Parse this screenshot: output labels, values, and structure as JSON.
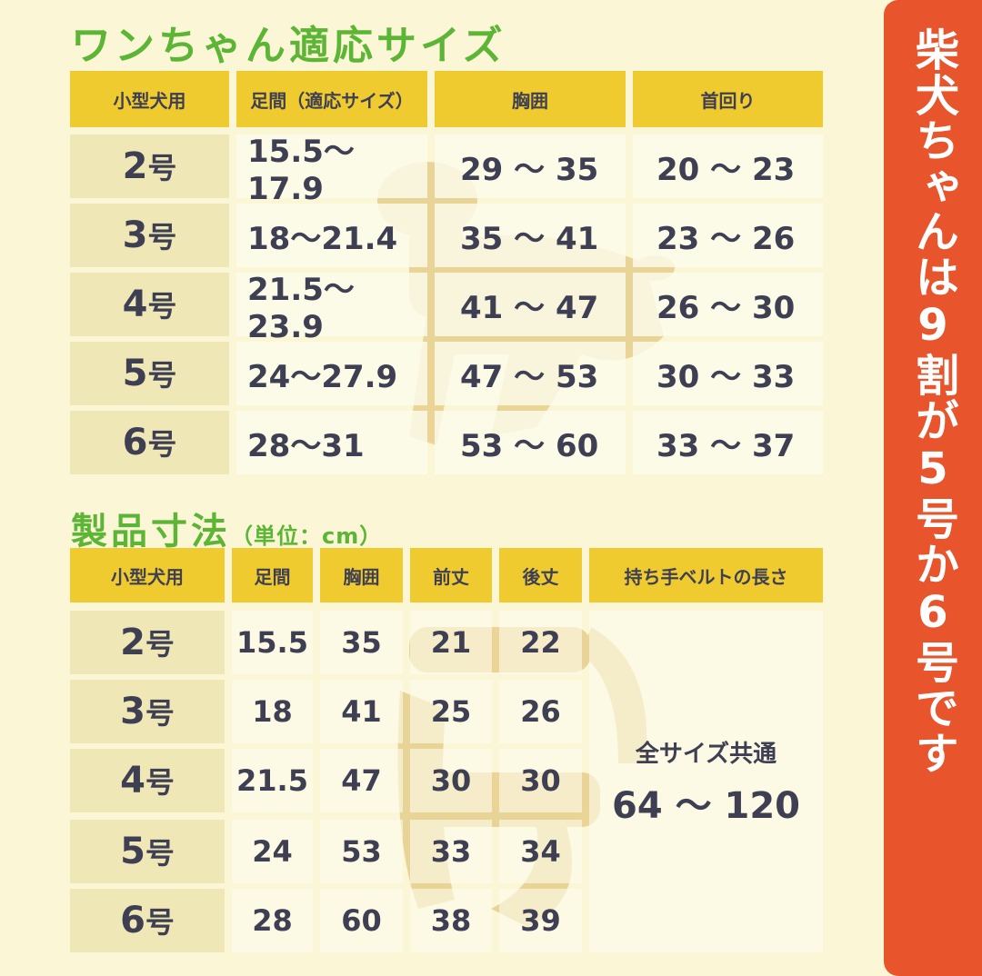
{
  "colors": {
    "background": "#faf6d6",
    "title_green": "#5db535",
    "header_yellow": "#efcb30",
    "side_orange": "#e8542c",
    "text": "#3e3f52"
  },
  "fit_table": {
    "title": "ワンちゃん適応サイズ",
    "headers": [
      "小型犬用",
      "足間（適応サイズ）",
      "胸囲",
      "首回り"
    ],
    "rows": [
      {
        "size": "2",
        "unit": "号",
        "leg": "15.5〜17.9",
        "chest": "29 〜 35",
        "neck": "20 〜 23"
      },
      {
        "size": "3",
        "unit": "号",
        "leg": "18〜21.4",
        "chest": "35 〜 41",
        "neck": "23 〜 26"
      },
      {
        "size": "4",
        "unit": "号",
        "leg": "21.5〜23.9",
        "chest": "41 〜 47",
        "neck": "26 〜 30"
      },
      {
        "size": "5",
        "unit": "号",
        "leg": "24〜27.9",
        "chest": "47 〜 53",
        "neck": "30 〜 33"
      },
      {
        "size": "6",
        "unit": "号",
        "leg": "28〜31",
        "chest": "53 〜 60",
        "neck": "33 〜 37"
      }
    ]
  },
  "product_table": {
    "title": "製品寸法",
    "unit_note": "（単位：cm）",
    "headers": [
      "小型犬用",
      "足間",
      "胸囲",
      "前丈",
      "後丈",
      "持ち手ベルトの長さ"
    ],
    "rows": [
      {
        "size": "2",
        "unit": "号",
        "leg": "15.5",
        "chest": "35",
        "front": "21",
        "back": "22"
      },
      {
        "size": "3",
        "unit": "号",
        "leg": "18",
        "chest": "41",
        "front": "25",
        "back": "26"
      },
      {
        "size": "4",
        "unit": "号",
        "leg": "21.5",
        "chest": "47",
        "front": "30",
        "back": "30"
      },
      {
        "size": "5",
        "unit": "号",
        "leg": "24",
        "chest": "53",
        "front": "33",
        "back": "34"
      },
      {
        "size": "6",
        "unit": "号",
        "leg": "28",
        "chest": "60",
        "front": "38",
        "back": "39"
      }
    ],
    "handle_note": "全サイズ共通",
    "handle_length": "64 〜 120"
  },
  "side_banner": "柴犬ちゃんは9割が5号か6号です"
}
